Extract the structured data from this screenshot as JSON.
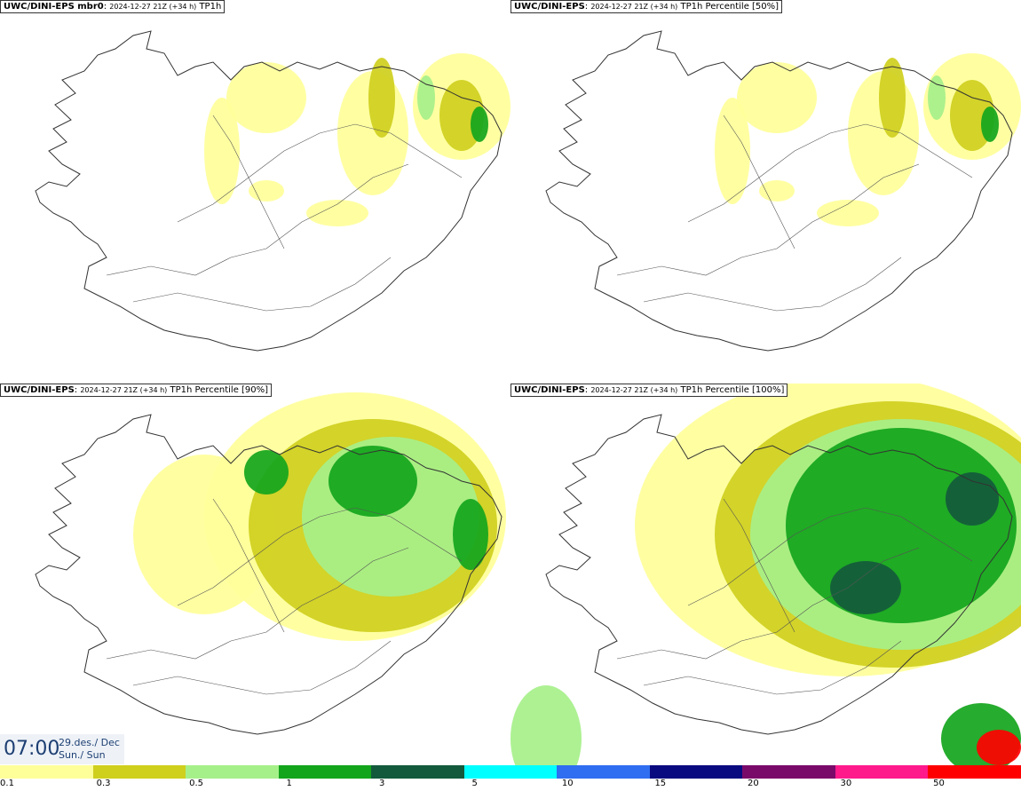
{
  "panels": [
    {
      "model": "UWC/DINI-EPS mbr0",
      "meta": "2024-12-27 21Z (+34 h)",
      "field": "TP1h",
      "intensity": "low"
    },
    {
      "model": "UWC/DINI-EPS",
      "meta": "2024-12-27 21Z (+34 h)",
      "field": "TP1h Percentile [50%]",
      "intensity": "low"
    },
    {
      "model": "UWC/DINI-EPS",
      "meta": "2024-12-27 21Z (+34 h)",
      "field": "TP1h Percentile [90%]",
      "intensity": "medium"
    },
    {
      "model": "UWC/DINI-EPS",
      "meta": "2024-12-27 21Z (+34 h)",
      "field": "TP1h Percentile [100%]",
      "intensity": "high"
    }
  ],
  "valid_time": {
    "time": "07:00",
    "date": "29.des./ Dec",
    "day": "Sun./ Sun"
  },
  "colorbar": {
    "colors": [
      "#ffff9a",
      "#cfcf1e",
      "#a6f08a",
      "#13a51c",
      "#135a3c",
      "#00ffff",
      "#2f6ef0",
      "#0a0a80",
      "#7a0a6a",
      "#ff1a8c",
      "#ff0000"
    ],
    "labels": [
      "0.1",
      "0.3",
      "0.5",
      "1",
      "3",
      "5",
      "10",
      "15",
      "20",
      "30",
      "50"
    ]
  }
}
